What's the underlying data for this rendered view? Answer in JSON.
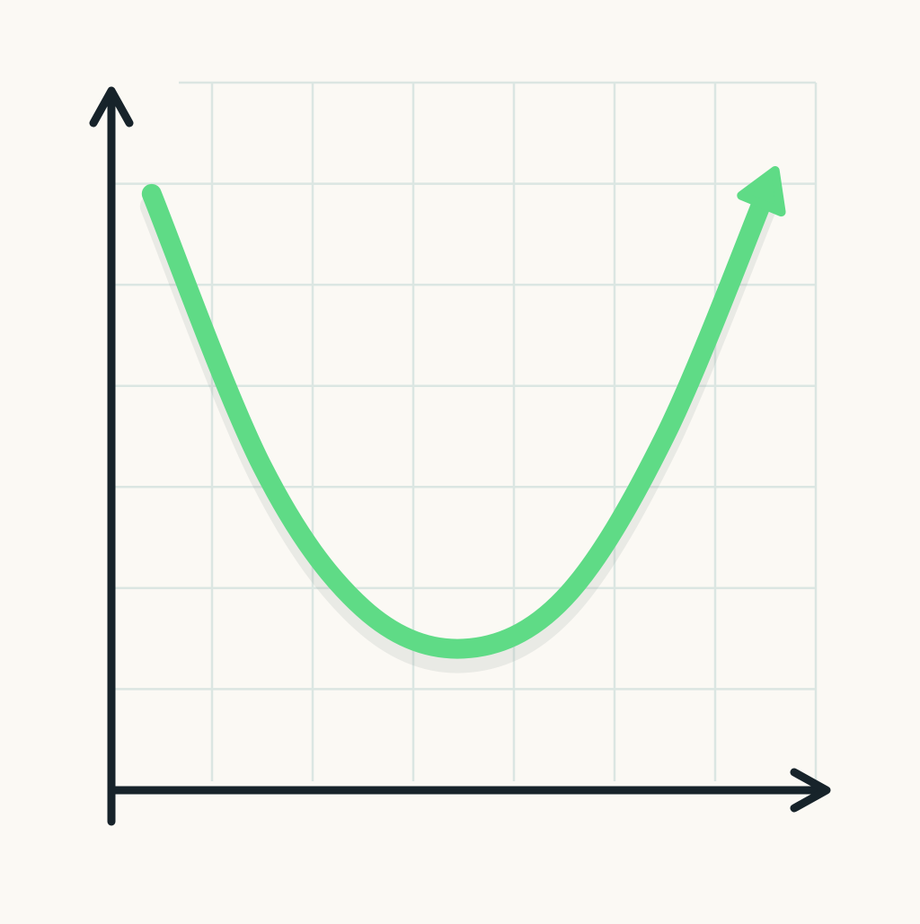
{
  "chart_data": {
    "type": "line",
    "title": "",
    "xlabel": "",
    "ylabel": "",
    "xlim": [
      0,
      7
    ],
    "ylim": [
      0,
      7
    ],
    "grid": true,
    "legend": "none",
    "series": [
      {
        "x": [
          0.4,
          1.5,
          2.5,
          3.5,
          4.5,
          5.5,
          6.5
        ],
        "y": [
          5.9,
          3.2,
          1.8,
          1.4,
          1.9,
          3.5,
          5.9
        ],
        "color": "#5fdb86",
        "end_arrow": true
      }
    ],
    "colors": {
      "background": "#fbf9f4",
      "grid": "#dbe6e2",
      "axis": "#17232a",
      "curve": "#5fdb86"
    }
  }
}
